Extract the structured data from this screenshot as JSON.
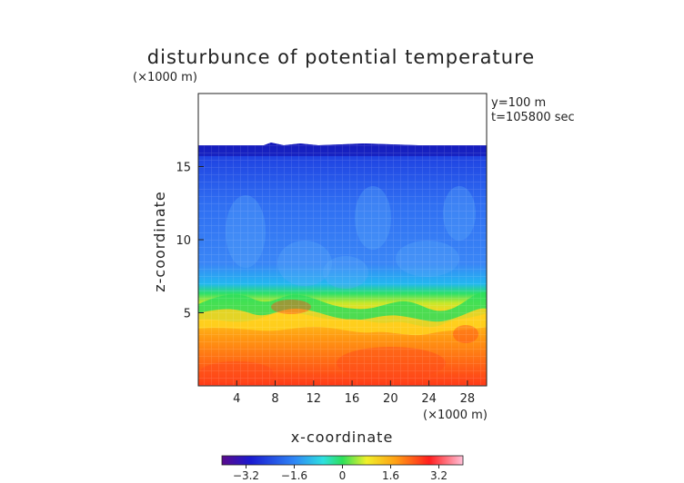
{
  "chart_data": {
    "type": "heatmap",
    "title": "disturbunce of potential temperature",
    "xlabel": "x-coordinate",
    "ylabel": "z-coordinate",
    "x_unit": "(×1000 m)",
    "z_unit": "(×1000 m)",
    "annotations": [
      "y=100 m",
      "t=105800 sec"
    ],
    "xlim": [
      0,
      30
    ],
    "ylim": [
      0,
      20
    ],
    "x_ticks": [
      "4",
      "8",
      "12",
      "16",
      "20",
      "24",
      "28"
    ],
    "y_ticks": [
      "5",
      "10",
      "15"
    ],
    "colorbar": {
      "range": [
        -4,
        4
      ],
      "tick_labels": [
        "-3.2",
        "-1.6",
        "0",
        "1.6",
        "3.2"
      ],
      "tick_values": [
        -3.2,
        -1.6,
        0,
        1.6,
        3.2
      ]
    },
    "field_description": {
      "top_of_data_z": 16.6,
      "inversion_z_approx": 6.0,
      "upper_layer_value_approx": -2.6,
      "lower_layer_value_approx": 2.5
    }
  }
}
